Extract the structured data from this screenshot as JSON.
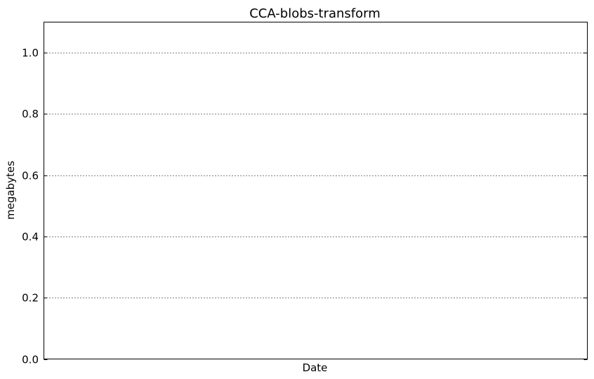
{
  "chart_data": {
    "type": "line",
    "title": "CCA-blobs-transform",
    "xlabel": "Date",
    "ylabel": "megabytes",
    "ylim": [
      0.0,
      1.1
    ],
    "yticks": [
      0.0,
      0.2,
      0.4,
      0.6,
      0.8,
      1.0
    ],
    "ytick_labels": [
      "0.0",
      "0.2",
      "0.4",
      "0.6",
      "0.8",
      "1.0"
    ],
    "grid": true,
    "series": []
  }
}
